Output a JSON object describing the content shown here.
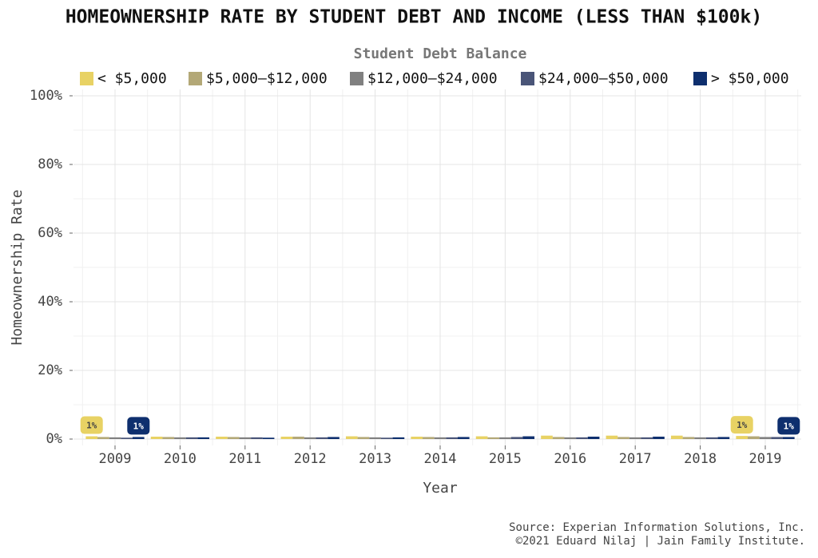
{
  "chart_data": {
    "type": "bar",
    "title": "HOMEOWNERSHIP RATE BY STUDENT DEBT AND INCOME (LESS THAN $100k)",
    "legend_title": "Student Debt Balance",
    "x_label": "Year",
    "y_label": "Homeownership Rate",
    "caption": [
      "Source: Experian Information Solutions, Inc.",
      "©2021 Eduard Nilaj | Jain Family Institute."
    ],
    "categories": [
      "2009",
      "2010",
      "2011",
      "2012",
      "2013",
      "2014",
      "2015",
      "2016",
      "2017",
      "2018",
      "2019"
    ],
    "series": [
      {
        "name": "< $5,000",
        "color": "#e8d264",
        "values": [
          0.8,
          0.7,
          0.7,
          0.7,
          0.8,
          0.7,
          0.8,
          1.0,
          1.0,
          1.0,
          0.9
        ],
        "value_labels": [
          "1%",
          null,
          null,
          null,
          null,
          null,
          null,
          null,
          null,
          null,
          "1%"
        ]
      },
      {
        "name": "$5,000–$12,000",
        "color": "#b3a877",
        "values": [
          0.6,
          0.6,
          0.6,
          0.7,
          0.6,
          0.6,
          0.5,
          0.6,
          0.6,
          0.6,
          0.8
        ]
      },
      {
        "name": "$12,000–$24,000",
        "color": "#808080",
        "values": [
          0.5,
          0.5,
          0.5,
          0.5,
          0.5,
          0.5,
          0.5,
          0.5,
          0.5,
          0.5,
          0.6
        ]
      },
      {
        "name": "$24,000–$50,000",
        "color": "#4a5578",
        "values": [
          0.4,
          0.5,
          0.5,
          0.5,
          0.4,
          0.5,
          0.6,
          0.5,
          0.5,
          0.5,
          0.6
        ]
      },
      {
        "name": "> $50,000",
        "color": "#0e2f6e",
        "values": [
          0.6,
          0.5,
          0.4,
          0.6,
          0.5,
          0.6,
          0.8,
          0.7,
          0.7,
          0.6,
          0.6
        ],
        "value_labels": [
          "1%",
          null,
          null,
          null,
          null,
          null,
          null,
          null,
          null,
          null,
          "1%"
        ]
      }
    ],
    "ylim": [
      0,
      100
    ],
    "yticks": [
      {
        "value": 0,
        "label": "0%"
      },
      {
        "value": 20,
        "label": "20%"
      },
      {
        "value": 40,
        "label": "40%"
      },
      {
        "value": 60,
        "label": "60%"
      },
      {
        "value": 80,
        "label": "80%"
      },
      {
        "value": 100,
        "label": "100%"
      }
    ],
    "grid": true,
    "legend": "top"
  }
}
